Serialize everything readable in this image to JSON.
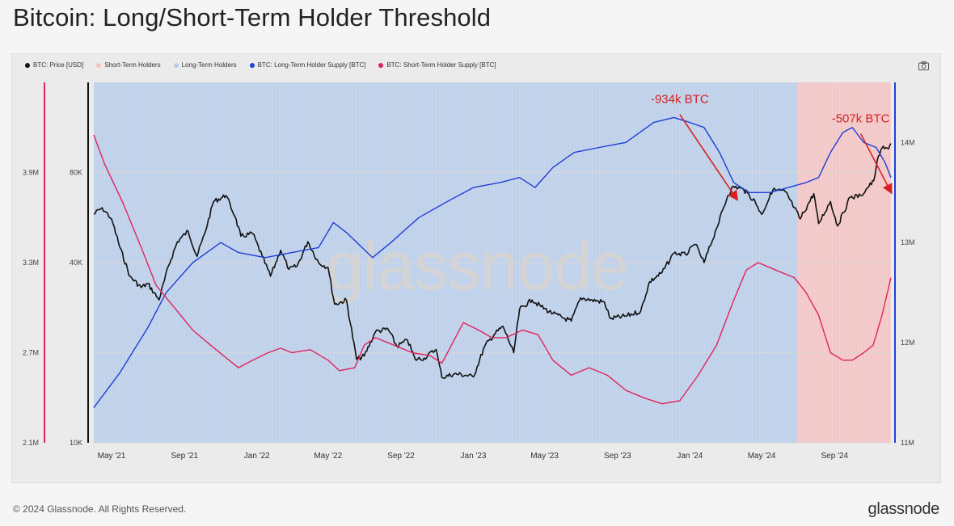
{
  "title": "Bitcoin: Long/Short-Term Holder Threshold",
  "footer": {
    "copyright": "© 2024 Glassnode. All Rights Reserved.",
    "logo": "glassnode"
  },
  "watermark": "glassnode",
  "legend": [
    {
      "label": "BTC: Price [USD]",
      "color": "#111111"
    },
    {
      "label": "Short-Term Holders",
      "color": "#f4c2c2"
    },
    {
      "label": "Long-Term Holders",
      "color": "#b9cdea"
    },
    {
      "label": "BTC: Long-Term Holder Supply [BTC]",
      "color": "#1f3fd6"
    },
    {
      "label": "BTC: Short-Term Holder Supply [BTC]",
      "color": "#e0245e"
    }
  ],
  "toolbar": {
    "camera_icon": "camera-icon"
  },
  "chart_data": {
    "type": "line",
    "x_ticks": [
      "May '21",
      "Sep '21",
      "Jan '22",
      "May '22",
      "Sep '22",
      "Jan '23",
      "May '23",
      "Sep '23",
      "Jan '24",
      "May '24",
      "Sep '24"
    ],
    "x_range": [
      "2021-04-01",
      "2024-12-05"
    ],
    "y_axes": {
      "sth_supply": {
        "side": "left-outer",
        "ticks": [
          "2.1M",
          "2.7M",
          "3.3M",
          "3.9M"
        ],
        "range": [
          2100000,
          4500000
        ]
      },
      "price": {
        "side": "left-inner",
        "scale": "log",
        "ticks": [
          "10K",
          "40K",
          "80K"
        ],
        "range": [
          10000,
          160000
        ]
      },
      "lth_supply": {
        "side": "right",
        "ticks": [
          "11M",
          "12M",
          "13M",
          "14M"
        ],
        "range": [
          11000000,
          14600000
        ]
      }
    },
    "annotations": [
      {
        "text": "-934k BTC",
        "date": "2023-12-15",
        "arrow_to": "2024-03-20"
      },
      {
        "text": "-507k BTC",
        "date": "2024-10-15",
        "arrow_to": "2024-12-05"
      }
    ],
    "regions": [
      {
        "name": "Long-Term Holders",
        "from": "2021-04-01",
        "to": "2024-07-01",
        "color": "#b9cdea"
      },
      {
        "name": "Short-Term Holders",
        "from": "2024-07-01",
        "to": "2024-12-05",
        "color": "#f4c2c2"
      }
    ],
    "series": [
      {
        "name": "BTC: Price [USD]",
        "axis": "price",
        "color": "#111111",
        "points": [
          [
            "2021-04-01",
            58000
          ],
          [
            "2021-04-15",
            61000
          ],
          [
            "2021-05-01",
            56000
          ],
          [
            "2021-05-15",
            45000
          ],
          [
            "2021-06-01",
            36000
          ],
          [
            "2021-06-20",
            33000
          ],
          [
            "2021-07-01",
            34000
          ],
          [
            "2021-07-20",
            30000
          ],
          [
            "2021-08-05",
            39000
          ],
          [
            "2021-08-20",
            47000
          ],
          [
            "2021-09-07",
            51000
          ],
          [
            "2021-09-22",
            42000
          ],
          [
            "2021-10-05",
            50000
          ],
          [
            "2021-10-20",
            64000
          ],
          [
            "2021-11-10",
            67000
          ],
          [
            "2021-11-25",
            57000
          ],
          [
            "2021-12-05",
            49000
          ],
          [
            "2021-12-25",
            50000
          ],
          [
            "2022-01-10",
            42000
          ],
          [
            "2022-01-24",
            36000
          ],
          [
            "2022-02-10",
            44000
          ],
          [
            "2022-02-24",
            38000
          ],
          [
            "2022-03-10",
            39000
          ],
          [
            "2022-03-28",
            47000
          ],
          [
            "2022-04-15",
            40000
          ],
          [
            "2022-05-01",
            38500
          ],
          [
            "2022-05-12",
            29000
          ],
          [
            "2022-06-01",
            30000
          ],
          [
            "2022-06-18",
            19000
          ],
          [
            "2022-07-01",
            19500
          ],
          [
            "2022-07-20",
            23500
          ],
          [
            "2022-08-10",
            24000
          ],
          [
            "2022-08-25",
            21000
          ],
          [
            "2022-09-12",
            22000
          ],
          [
            "2022-09-25",
            19000
          ],
          [
            "2022-10-10",
            19200
          ],
          [
            "2022-10-30",
            20500
          ],
          [
            "2022-11-09",
            16500
          ],
          [
            "2022-11-30",
            17000
          ],
          [
            "2022-12-20",
            16800
          ],
          [
            "2023-01-01",
            16600
          ],
          [
            "2023-01-20",
            21000
          ],
          [
            "2023-02-05",
            23000
          ],
          [
            "2023-02-20",
            24500
          ],
          [
            "2023-03-10",
            20000
          ],
          [
            "2023-03-20",
            28000
          ],
          [
            "2023-04-10",
            30000
          ],
          [
            "2023-04-25",
            28500
          ],
          [
            "2023-05-15",
            27000
          ],
          [
            "2023-06-15",
            25500
          ],
          [
            "2023-07-01",
            30500
          ],
          [
            "2023-07-20",
            30000
          ],
          [
            "2023-08-10",
            29500
          ],
          [
            "2023-08-20",
            26000
          ],
          [
            "2023-09-15",
            26500
          ],
          [
            "2023-10-10",
            27500
          ],
          [
            "2023-10-25",
            34500
          ],
          [
            "2023-11-15",
            37000
          ],
          [
            "2023-12-05",
            43000
          ],
          [
            "2023-12-25",
            42500
          ],
          [
            "2024-01-10",
            46000
          ],
          [
            "2024-01-25",
            40000
          ],
          [
            "2024-02-15",
            52000
          ],
          [
            "2024-03-05",
            67000
          ],
          [
            "2024-03-14",
            72000
          ],
          [
            "2024-04-01",
            70000
          ],
          [
            "2024-04-20",
            64000
          ],
          [
            "2024-05-01",
            58000
          ],
          [
            "2024-05-20",
            70000
          ],
          [
            "2024-06-10",
            69000
          ],
          [
            "2024-06-25",
            61000
          ],
          [
            "2024-07-05",
            56000
          ],
          [
            "2024-07-28",
            68000
          ],
          [
            "2024-08-05",
            54000
          ],
          [
            "2024-08-25",
            64000
          ],
          [
            "2024-09-06",
            53000
          ],
          [
            "2024-09-27",
            66000
          ],
          [
            "2024-10-15",
            67000
          ],
          [
            "2024-10-29",
            72000
          ],
          [
            "2024-11-06",
            75000
          ],
          [
            "2024-11-12",
            88000
          ],
          [
            "2024-11-22",
            98000
          ],
          [
            "2024-12-01",
            96000
          ],
          [
            "2024-12-05",
            100000
          ]
        ]
      },
      {
        "name": "BTC: Long-Term Holder Supply [BTC]",
        "axis": "lth_supply",
        "color": "#1f3fd6",
        "points": [
          [
            "2021-04-01",
            11350000
          ],
          [
            "2021-05-15",
            11700000
          ],
          [
            "2021-07-01",
            12150000
          ],
          [
            "2021-08-01",
            12500000
          ],
          [
            "2021-09-15",
            12800000
          ],
          [
            "2021-11-01",
            13000000
          ],
          [
            "2021-12-01",
            12900000
          ],
          [
            "2022-01-15",
            12850000
          ],
          [
            "2022-03-01",
            12900000
          ],
          [
            "2022-04-15",
            12950000
          ],
          [
            "2022-05-10",
            13200000
          ],
          [
            "2022-06-01",
            13100000
          ],
          [
            "2022-07-15",
            12850000
          ],
          [
            "2022-08-15",
            13000000
          ],
          [
            "2022-10-01",
            13250000
          ],
          [
            "2022-11-15",
            13400000
          ],
          [
            "2023-01-01",
            13550000
          ],
          [
            "2023-02-15",
            13600000
          ],
          [
            "2023-03-20",
            13650000
          ],
          [
            "2023-04-15",
            13550000
          ],
          [
            "2023-05-15",
            13750000
          ],
          [
            "2023-06-20",
            13900000
          ],
          [
            "2023-08-01",
            13950000
          ],
          [
            "2023-09-15",
            14000000
          ],
          [
            "2023-11-01",
            14200000
          ],
          [
            "2023-12-05",
            14250000
          ],
          [
            "2024-01-01",
            14200000
          ],
          [
            "2024-01-25",
            14150000
          ],
          [
            "2024-02-20",
            13900000
          ],
          [
            "2024-03-15",
            13600000
          ],
          [
            "2024-04-10",
            13500000
          ],
          [
            "2024-05-15",
            13500000
          ],
          [
            "2024-06-15",
            13550000
          ],
          [
            "2024-07-15",
            13600000
          ],
          [
            "2024-08-05",
            13650000
          ],
          [
            "2024-08-25",
            13900000
          ],
          [
            "2024-09-15",
            14100000
          ],
          [
            "2024-10-01",
            14150000
          ],
          [
            "2024-10-20",
            14000000
          ],
          [
            "2024-11-10",
            13950000
          ],
          [
            "2024-11-25",
            13800000
          ],
          [
            "2024-12-05",
            13650000
          ]
        ]
      },
      {
        "name": "BTC: Short-Term Holder Supply [BTC]",
        "axis": "sth_supply",
        "color": "#e0245e",
        "points": [
          [
            "2021-04-01",
            4150000
          ],
          [
            "2021-04-20",
            3950000
          ],
          [
            "2021-05-20",
            3700000
          ],
          [
            "2021-06-20",
            3400000
          ],
          [
            "2021-07-15",
            3150000
          ],
          [
            "2021-08-15",
            3000000
          ],
          [
            "2021-09-15",
            2850000
          ],
          [
            "2021-10-15",
            2750000
          ],
          [
            "2021-11-15",
            2650000
          ],
          [
            "2021-12-01",
            2600000
          ],
          [
            "2021-12-25",
            2650000
          ],
          [
            "2022-01-20",
            2700000
          ],
          [
            "2022-02-10",
            2730000
          ],
          [
            "2022-03-01",
            2700000
          ],
          [
            "2022-04-01",
            2720000
          ],
          [
            "2022-05-01",
            2650000
          ],
          [
            "2022-05-20",
            2580000
          ],
          [
            "2022-06-15",
            2600000
          ],
          [
            "2022-07-01",
            2750000
          ],
          [
            "2022-07-20",
            2800000
          ],
          [
            "2022-08-20",
            2750000
          ],
          [
            "2022-09-20",
            2700000
          ],
          [
            "2022-10-20",
            2680000
          ],
          [
            "2022-11-09",
            2630000
          ],
          [
            "2022-11-25",
            2750000
          ],
          [
            "2022-12-15",
            2900000
          ],
          [
            "2023-01-10",
            2850000
          ],
          [
            "2023-02-01",
            2800000
          ],
          [
            "2023-02-25",
            2800000
          ],
          [
            "2023-03-25",
            2850000
          ],
          [
            "2023-04-20",
            2820000
          ],
          [
            "2023-05-15",
            2650000
          ],
          [
            "2023-06-15",
            2550000
          ],
          [
            "2023-07-15",
            2600000
          ],
          [
            "2023-08-15",
            2550000
          ],
          [
            "2023-09-15",
            2450000
          ],
          [
            "2023-10-15",
            2400000
          ],
          [
            "2023-11-15",
            2360000
          ],
          [
            "2023-12-15",
            2380000
          ],
          [
            "2024-01-15",
            2550000
          ],
          [
            "2024-02-15",
            2750000
          ],
          [
            "2024-03-15",
            3050000
          ],
          [
            "2024-04-05",
            3250000
          ],
          [
            "2024-04-25",
            3300000
          ],
          [
            "2024-05-25",
            3250000
          ],
          [
            "2024-06-25",
            3200000
          ],
          [
            "2024-07-15",
            3100000
          ],
          [
            "2024-08-05",
            2950000
          ],
          [
            "2024-08-25",
            2700000
          ],
          [
            "2024-09-15",
            2650000
          ],
          [
            "2024-10-01",
            2650000
          ],
          [
            "2024-10-20",
            2700000
          ],
          [
            "2024-11-05",
            2750000
          ],
          [
            "2024-11-20",
            2950000
          ],
          [
            "2024-12-05",
            3200000
          ]
        ]
      }
    ]
  }
}
